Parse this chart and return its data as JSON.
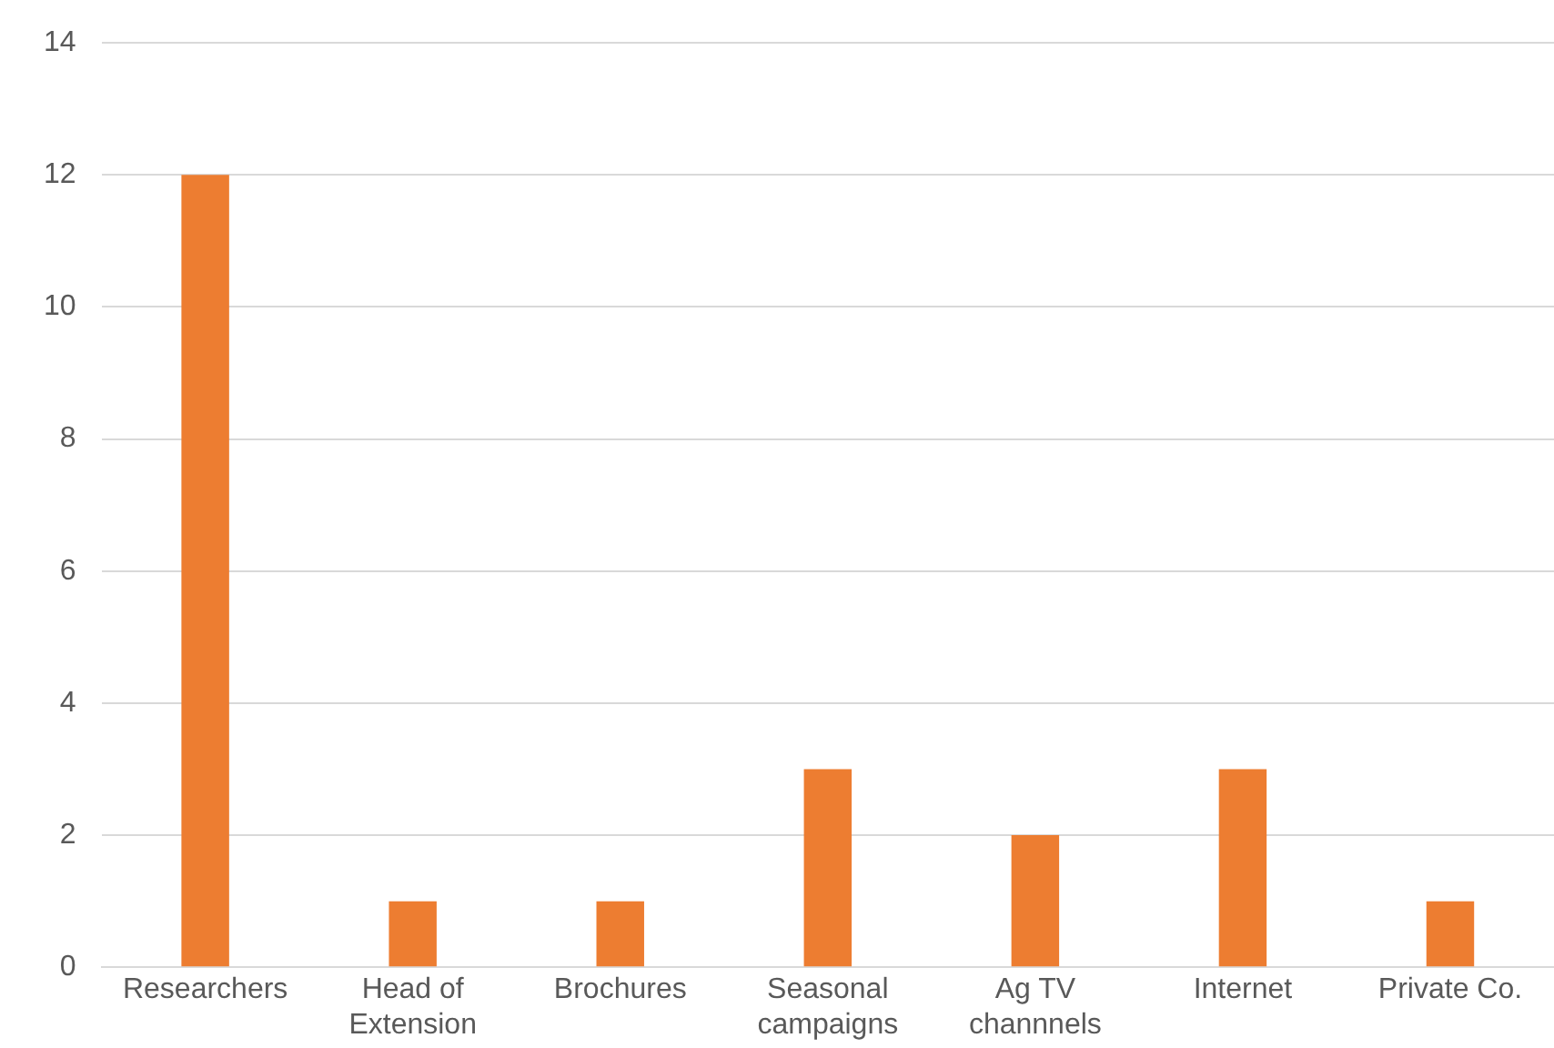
{
  "chart_data": {
    "type": "bar",
    "categories": [
      "Researchers",
      "Head of Extension",
      "Brochures",
      "Seasonal campaigns",
      "Ag TV channnels",
      "Internet",
      "Private Co."
    ],
    "values": [
      12,
      1,
      1,
      3,
      2,
      3,
      1
    ],
    "color": "#ed7d31",
    "ylim": [
      0,
      14
    ],
    "yticks": [
      0,
      2,
      4,
      6,
      8,
      10,
      12,
      14
    ],
    "grid": "y"
  }
}
